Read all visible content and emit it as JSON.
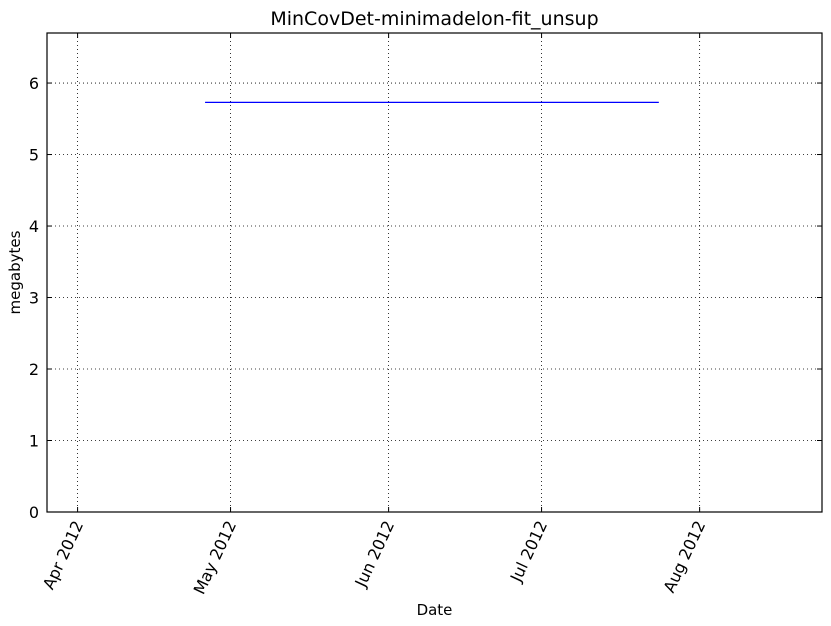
{
  "chart_data": {
    "type": "line",
    "title": "MinCovDet-minimadelon-fit_unsup",
    "xlabel": "Date",
    "ylabel": "megabytes",
    "x_axis_type": "date",
    "xlim": [
      "2012-03-26",
      "2012-08-25"
    ],
    "ylim": [
      0,
      6.7
    ],
    "x_ticks": [
      {
        "label": "Apr 2012",
        "date": "2012-04-01"
      },
      {
        "label": "May 2012",
        "date": "2012-05-01"
      },
      {
        "label": "Jun 2012",
        "date": "2012-06-01"
      },
      {
        "label": "Jul 2012",
        "date": "2012-07-01"
      },
      {
        "label": "Aug 2012",
        "date": "2012-08-01"
      }
    ],
    "y_ticks": [
      0,
      1,
      2,
      3,
      4,
      5,
      6
    ],
    "grid": true,
    "series": [
      {
        "color": "#0000ff",
        "points": [
          {
            "x": "2012-04-26",
            "y": 5.73
          },
          {
            "x": "2012-07-24",
            "y": 5.73
          }
        ]
      }
    ]
  }
}
